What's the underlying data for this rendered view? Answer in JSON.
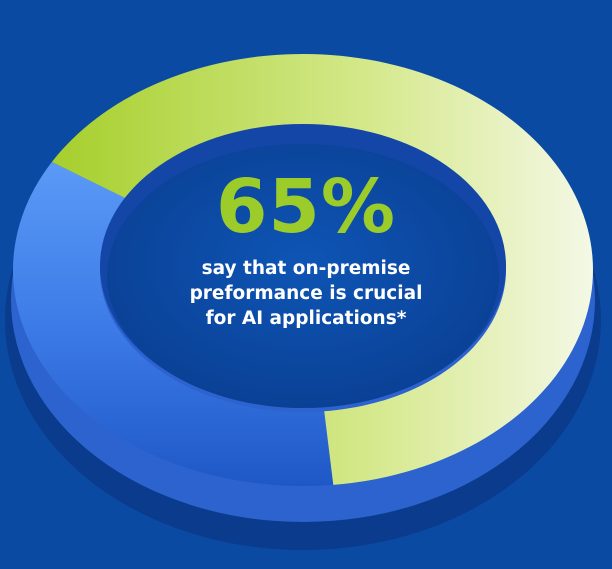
{
  "chart_data": {
    "type": "pie",
    "style": "3d-donut",
    "value": 65,
    "value_label": "65%",
    "caption_lines": [
      "say that on-premise",
      "preformance is crucial",
      "for AI applications*"
    ],
    "colors": {
      "background": "#0b4aa3",
      "highlight_segment_start": "#a6cf2c",
      "highlight_segment_end": "#f4f8e6",
      "remaining_segment_light": "#4f8ff0",
      "remaining_segment_dark": "#1a55c4",
      "value_text": "#9ccc2a",
      "caption_text": "#ffffff"
    }
  }
}
